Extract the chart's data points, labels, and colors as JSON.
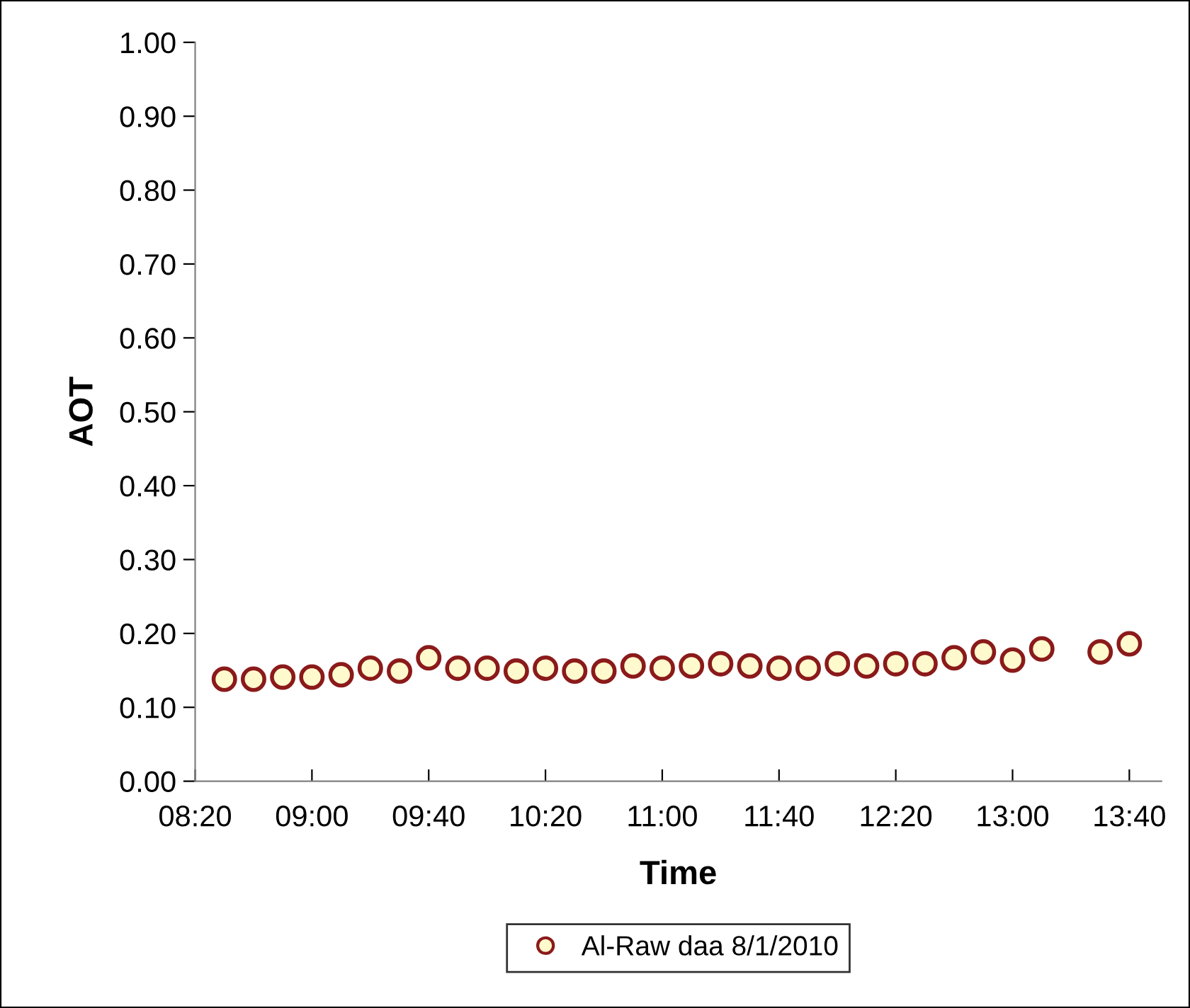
{
  "chart_data": {
    "type": "scatter",
    "xlabel": "Time",
    "ylabel": "AOT",
    "series": [
      {
        "name": "Al-Raw daa 8/1/2010",
        "color": "#fffacd",
        "x": [
          8.5,
          8.6667,
          8.8333,
          9.0,
          9.1667,
          9.3333,
          9.5,
          9.6667,
          9.8333,
          10.0,
          10.1667,
          10.3333,
          10.5,
          10.6667,
          10.8333,
          11.0,
          11.1667,
          11.3333,
          11.5,
          11.6667,
          11.8333,
          12.0,
          12.1667,
          12.3333,
          12.5,
          12.6667,
          12.8333,
          13.0,
          13.1667,
          13.5,
          13.6667
        ],
        "values": [
          0.138,
          0.138,
          0.141,
          0.141,
          0.144,
          0.153,
          0.149,
          0.167,
          0.153,
          0.153,
          0.149,
          0.153,
          0.149,
          0.149,
          0.156,
          0.153,
          0.156,
          0.159,
          0.156,
          0.153,
          0.153,
          0.159,
          0.156,
          0.159,
          0.159,
          0.167,
          0.175,
          0.164,
          0.179,
          0.175,
          0.186
        ]
      }
    ],
    "marker": "circle",
    "grid": false,
    "legend": "bottom",
    "xlim": [
      8.3333,
      13.85
    ],
    "xticks": [
      {
        "value": 8.3333,
        "label": "08:20"
      },
      {
        "value": 9.0,
        "label": "09:00"
      },
      {
        "value": 9.6667,
        "label": "09:40"
      },
      {
        "value": 10.3333,
        "label": "10:20"
      },
      {
        "value": 11.0,
        "label": "11:00"
      },
      {
        "value": 11.6667,
        "label": "11:40"
      },
      {
        "value": 12.3333,
        "label": "12:20"
      },
      {
        "value": 13.0,
        "label": "13:00"
      },
      {
        "value": 13.6667,
        "label": "13:40"
      }
    ],
    "ylim": [
      0,
      1
    ],
    "yticks": [
      {
        "value": 0,
        "label": "0.00"
      },
      {
        "value": 0.1,
        "label": "0.10"
      },
      {
        "value": 0.2,
        "label": "0.20"
      },
      {
        "value": 0.3,
        "label": "0.30"
      },
      {
        "value": 0.4,
        "label": "0.40"
      },
      {
        "value": 0.5,
        "label": "0.50"
      },
      {
        "value": 0.6,
        "label": "0.60"
      },
      {
        "value": 0.7,
        "label": "0.70"
      },
      {
        "value": 0.8,
        "label": "0.80"
      },
      {
        "value": 0.9,
        "label": "0.90"
      },
      {
        "value": 1.0,
        "label": "1.00"
      }
    ]
  }
}
